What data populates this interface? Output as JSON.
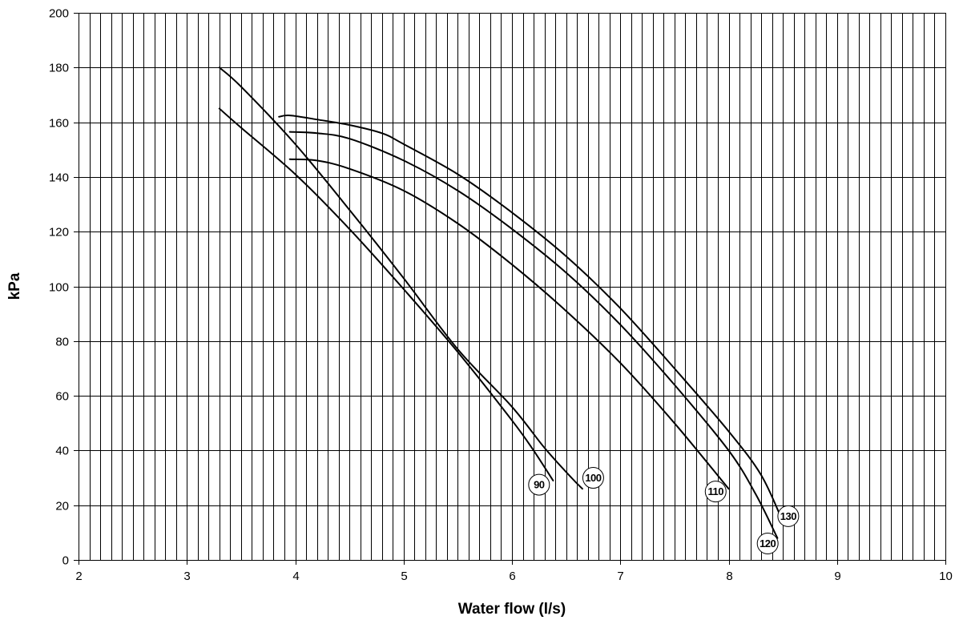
{
  "chart_data": {
    "type": "line",
    "title": "",
    "xlabel": "Water flow (l/s)",
    "ylabel": "kPa",
    "xlim": [
      2,
      10
    ],
    "ylim": [
      0,
      200
    ],
    "xticks": [
      2,
      3,
      4,
      5,
      6,
      7,
      8,
      9,
      10
    ],
    "yticks": [
      0,
      20,
      40,
      60,
      80,
      100,
      120,
      140,
      160,
      180,
      200
    ],
    "x_minor_step": 0.1,
    "grid": true,
    "legend": "none",
    "line_color": "#000000",
    "series": [
      {
        "name": "90",
        "label_at": [
          6.25,
          27.5
        ],
        "points": [
          [
            3.3,
            165
          ],
          [
            3.5,
            158
          ],
          [
            4.0,
            141
          ],
          [
            4.5,
            121
          ],
          [
            5.0,
            99
          ],
          [
            5.5,
            76
          ],
          [
            6.0,
            51
          ],
          [
            6.2,
            40
          ],
          [
            6.38,
            29
          ]
        ]
      },
      {
        "name": "100",
        "label_at": [
          6.75,
          30
        ],
        "points": [
          [
            3.3,
            180
          ],
          [
            3.5,
            173
          ],
          [
            4.0,
            152
          ],
          [
            4.5,
            128
          ],
          [
            5.0,
            103
          ],
          [
            5.5,
            77
          ],
          [
            6.0,
            56
          ],
          [
            6.3,
            41
          ],
          [
            6.55,
            30
          ],
          [
            6.65,
            26
          ]
        ]
      },
      {
        "name": "110",
        "label_at": [
          7.88,
          25
        ],
        "points": [
          [
            3.95,
            146.5
          ],
          [
            4.2,
            146
          ],
          [
            4.5,
            143
          ],
          [
            5.0,
            135
          ],
          [
            5.5,
            123
          ],
          [
            6.0,
            108
          ],
          [
            6.5,
            91
          ],
          [
            7.0,
            72
          ],
          [
            7.5,
            50
          ],
          [
            8.0,
            26
          ]
        ]
      },
      {
        "name": "120",
        "label_at": [
          8.36,
          6
        ],
        "points": [
          [
            3.95,
            156.5
          ],
          [
            4.2,
            156
          ],
          [
            4.5,
            154
          ],
          [
            5.0,
            146
          ],
          [
            5.5,
            135
          ],
          [
            6.0,
            121
          ],
          [
            6.5,
            105
          ],
          [
            7.0,
            86
          ],
          [
            7.5,
            64
          ],
          [
            8.0,
            40
          ],
          [
            8.25,
            24
          ],
          [
            8.45,
            8
          ]
        ]
      },
      {
        "name": "130",
        "label_at": [
          8.55,
          16
        ],
        "points": [
          [
            3.85,
            162
          ],
          [
            3.95,
            162.5
          ],
          [
            4.2,
            161
          ],
          [
            4.5,
            159
          ],
          [
            4.8,
            156
          ],
          [
            5.0,
            152
          ],
          [
            5.5,
            141
          ],
          [
            6.0,
            127
          ],
          [
            6.5,
            111
          ],
          [
            7.0,
            92
          ],
          [
            7.5,
            70
          ],
          [
            8.0,
            47
          ],
          [
            8.3,
            31
          ],
          [
            8.5,
            14
          ]
        ]
      }
    ]
  }
}
